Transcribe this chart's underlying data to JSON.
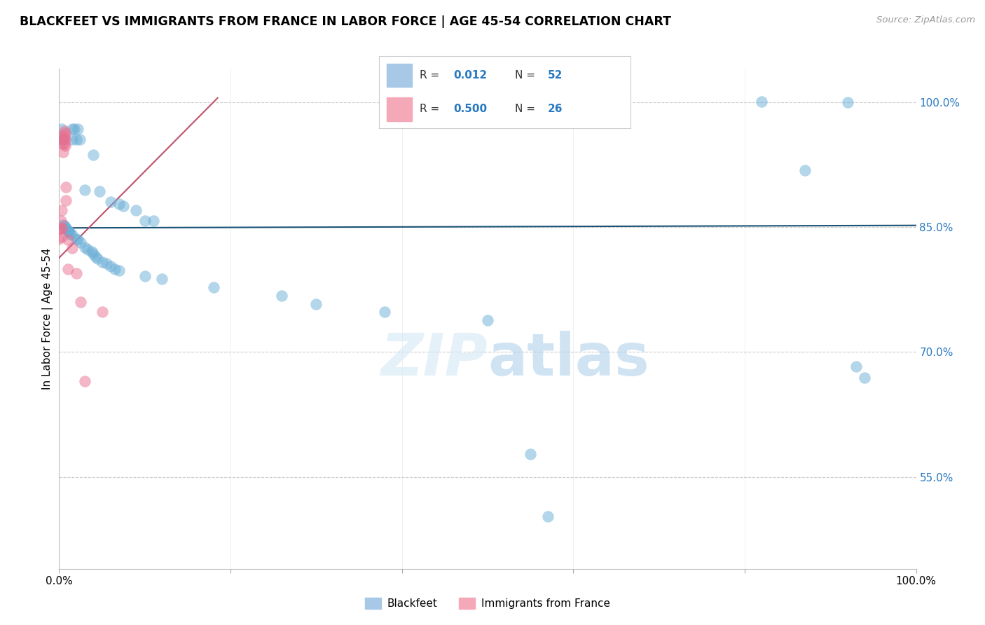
{
  "title": "BLACKFEET VS IMMIGRANTS FROM FRANCE IN LABOR FORCE | AGE 45-54 CORRELATION CHART",
  "source": "Source: ZipAtlas.com",
  "ylabel": "In Labor Force | Age 45-54",
  "watermark": "ZIPatlas",
  "xmin": 0.0,
  "xmax": 1.0,
  "ymin": 0.44,
  "ymax": 1.04,
  "yticks": [
    0.55,
    0.7,
    0.85,
    1.0
  ],
  "ytick_labels": [
    "55.0%",
    "70.0%",
    "85.0%",
    "100.0%"
  ],
  "xticks": [
    0.0,
    0.2,
    0.4,
    0.6,
    0.8,
    1.0
  ],
  "blue_line_y_start": 0.849,
  "blue_line_y_end": 0.852,
  "blue_line_color": "#1a5276",
  "pink_line_x_start": -0.005,
  "pink_line_x_end": 0.185,
  "pink_line_y_start": 0.808,
  "pink_line_y_end": 1.005,
  "pink_line_color": "#c0506a",
  "blue_scatter": [
    [
      0.003,
      0.968
    ],
    [
      0.004,
      0.955
    ],
    [
      0.005,
      0.955
    ],
    [
      0.015,
      0.968
    ],
    [
      0.015,
      0.955
    ],
    [
      0.018,
      0.968
    ],
    [
      0.02,
      0.955
    ],
    [
      0.022,
      0.968
    ],
    [
      0.024,
      0.955
    ],
    [
      0.03,
      0.895
    ],
    [
      0.04,
      0.937
    ],
    [
      0.047,
      0.893
    ],
    [
      0.06,
      0.88
    ],
    [
      0.07,
      0.878
    ],
    [
      0.075,
      0.875
    ],
    [
      0.09,
      0.87
    ],
    [
      0.1,
      0.858
    ],
    [
      0.11,
      0.858
    ],
    [
      0.005,
      0.853
    ],
    [
      0.006,
      0.852
    ],
    [
      0.007,
      0.85
    ],
    [
      0.008,
      0.848
    ],
    [
      0.009,
      0.847
    ],
    [
      0.01,
      0.846
    ],
    [
      0.011,
      0.845
    ],
    [
      0.012,
      0.844
    ],
    [
      0.013,
      0.842
    ],
    [
      0.015,
      0.841
    ],
    [
      0.02,
      0.836
    ],
    [
      0.022,
      0.835
    ],
    [
      0.025,
      0.832
    ],
    [
      0.03,
      0.826
    ],
    [
      0.033,
      0.823
    ],
    [
      0.038,
      0.821
    ],
    [
      0.04,
      0.818
    ],
    [
      0.042,
      0.815
    ],
    [
      0.045,
      0.812
    ],
    [
      0.05,
      0.808
    ],
    [
      0.055,
      0.806
    ],
    [
      0.06,
      0.803
    ],
    [
      0.065,
      0.8
    ],
    [
      0.07,
      0.798
    ],
    [
      0.1,
      0.791
    ],
    [
      0.12,
      0.788
    ],
    [
      0.18,
      0.778
    ],
    [
      0.26,
      0.768
    ],
    [
      0.3,
      0.758
    ],
    [
      0.38,
      0.748
    ],
    [
      0.5,
      0.738
    ],
    [
      0.57,
      0.503
    ],
    [
      0.55,
      0.578
    ],
    [
      0.87,
      0.918
    ],
    [
      0.92,
      1.0
    ],
    [
      0.93,
      0.683
    ],
    [
      0.94,
      0.669
    ],
    [
      0.82,
      1.001
    ]
  ],
  "pink_scatter": [
    [
      0.0,
      0.848
    ],
    [
      0.0,
      0.836
    ],
    [
      0.002,
      0.858
    ],
    [
      0.002,
      0.848
    ],
    [
      0.003,
      0.87
    ],
    [
      0.003,
      0.848
    ],
    [
      0.003,
      0.838
    ],
    [
      0.005,
      0.96
    ],
    [
      0.005,
      0.955
    ],
    [
      0.005,
      0.95
    ],
    [
      0.005,
      0.94
    ],
    [
      0.006,
      0.965
    ],
    [
      0.006,
      0.958
    ],
    [
      0.006,
      0.95
    ],
    [
      0.007,
      0.963
    ],
    [
      0.007,
      0.955
    ],
    [
      0.007,
      0.948
    ],
    [
      0.008,
      0.898
    ],
    [
      0.008,
      0.882
    ],
    [
      0.01,
      0.835
    ],
    [
      0.01,
      0.8
    ],
    [
      0.015,
      0.825
    ],
    [
      0.02,
      0.795
    ],
    [
      0.025,
      0.76
    ],
    [
      0.03,
      0.665
    ],
    [
      0.05,
      0.748
    ]
  ],
  "scatter_alpha": 0.5,
  "scatter_size": 130,
  "blue_color": "#6aaed6",
  "pink_color": "#e87090",
  "grid_color": "#cccccc",
  "bg_color": "#ffffff"
}
